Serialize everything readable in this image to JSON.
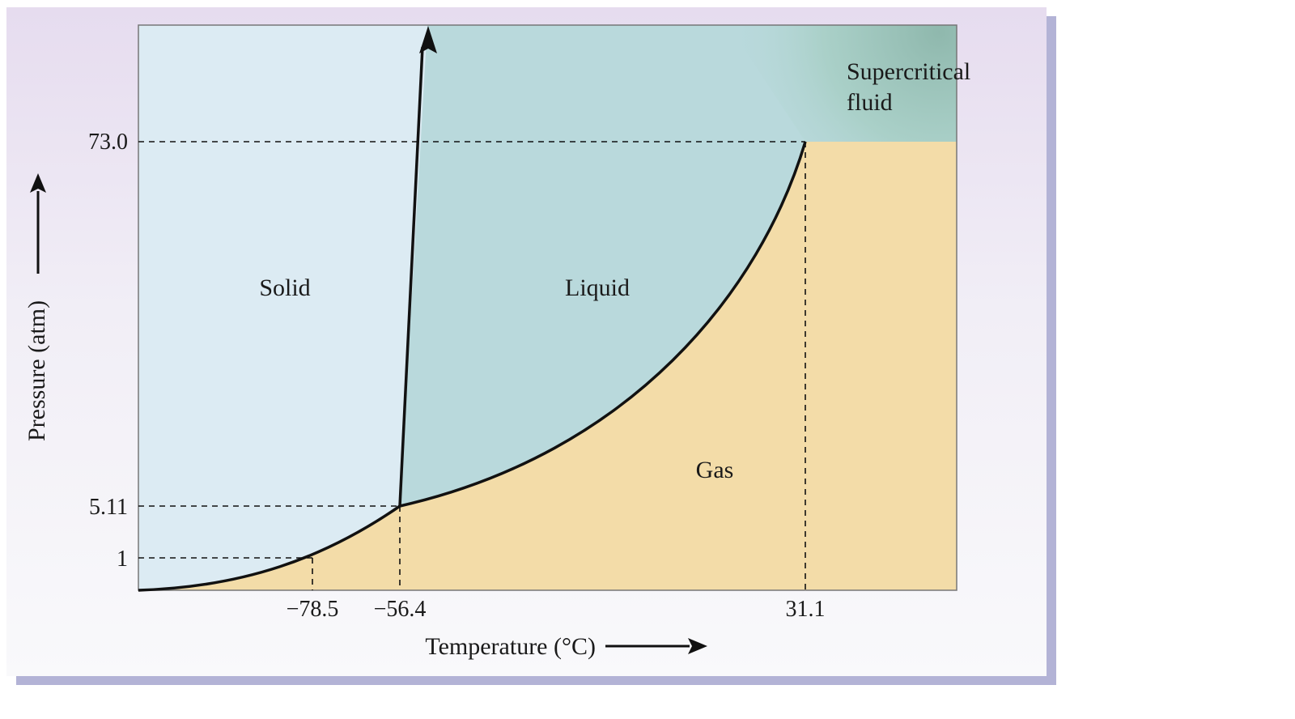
{
  "diagram": {
    "type": "phase-diagram",
    "x_axis": {
      "label": "Temperature (°C)"
    },
    "y_axis": {
      "label": "Pressure (atm)"
    },
    "x_ticks": [
      "−78.5",
      "−56.4",
      "31.1"
    ],
    "y_ticks": [
      "73.0",
      "5.11",
      "1"
    ],
    "regions": {
      "solid": "Solid",
      "liquid": "Liquid",
      "gas": "Gas",
      "supercritical_line1": "Supercritical",
      "supercritical_line2": "fluid"
    },
    "colors": {
      "solid": "#dcebf3",
      "liquid": "#b9d9dc",
      "gas": "#f3dca8",
      "supercritical": "#9fc4bb",
      "curve": "#111111",
      "frame_shadow": "#b3b3d6"
    }
  }
}
